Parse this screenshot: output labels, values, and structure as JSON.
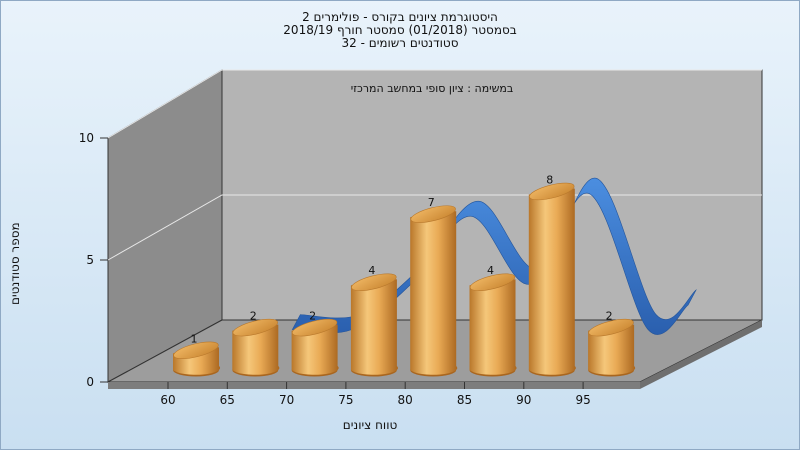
{
  "titles": {
    "line1": "היסטוגרמת ציונים בקורס - פולימרים 2",
    "line2": "בסמסטר  (01/2018)  סמסטר חורף 2018/19",
    "line3": "סטודנטים רשומים - 32"
  },
  "chart_data": {
    "type": "bar",
    "title": "היסטוגרמת ציונים בקורס - פולימרים 2",
    "subtitle": "בסמסטר  (01/2018)  סמסטר חורף 2018/19 | סטודנטים רשומים - 32",
    "annotation": "במשימה : ציון סופי במחשב המרכזי",
    "xlabel": "טווח ציונים",
    "ylabel": "מספר סטודנטים",
    "categories": [
      "60",
      "65",
      "70",
      "75",
      "80",
      "85",
      "90",
      "95"
    ],
    "values": [
      1,
      2,
      2,
      4,
      7,
      4,
      8,
      2
    ],
    "data_labels": [
      "1",
      "2",
      "2",
      "4",
      "7",
      "4",
      "8",
      "2"
    ],
    "ylim": [
      0,
      10
    ],
    "yticks": [
      "0",
      "5",
      "10"
    ],
    "grid": true,
    "overlay": "smoothed blue ribbon curve behind bars",
    "colors": {
      "bar": "#e2a34a",
      "ribbon": "#2f6fc4",
      "back_wall": "#b3b3b3",
      "side_wall": "#8a8a8a"
    }
  }
}
